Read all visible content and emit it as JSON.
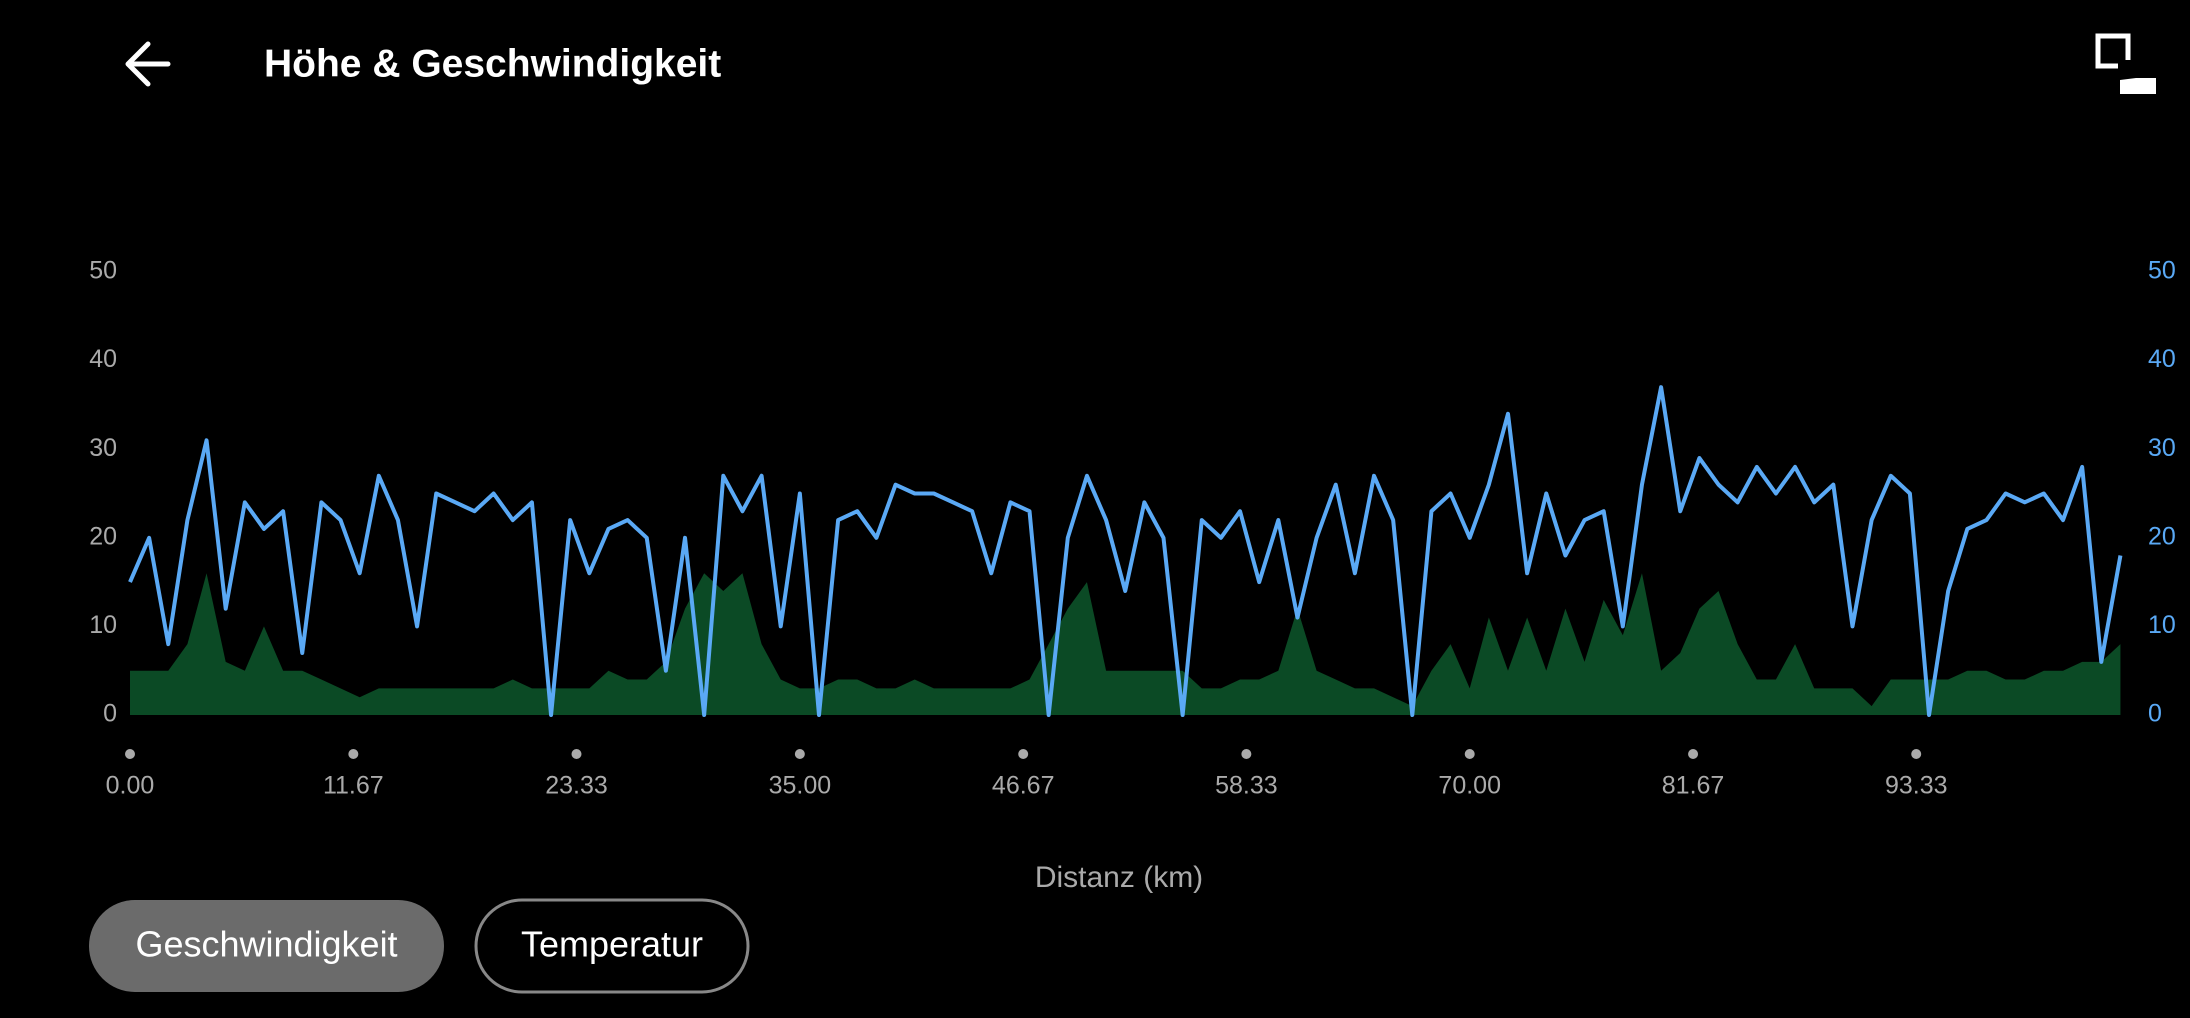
{
  "chart_data": {
    "type": "line",
    "title": "Höhe & Geschwindigkeit",
    "x_label": "Distanz (km)",
    "x": [
      0,
      1,
      2,
      3,
      4,
      5,
      6,
      7,
      8,
      9,
      10,
      11,
      12,
      13,
      14,
      15,
      16,
      17,
      18,
      19,
      20,
      21,
      22,
      23,
      24,
      25,
      26,
      27,
      28,
      29,
      30,
      31,
      32,
      33,
      34,
      35,
      36,
      37,
      38,
      39,
      40,
      41,
      42,
      43,
      44,
      45,
      46,
      47,
      48,
      49,
      50,
      51,
      52,
      53,
      54,
      55,
      56,
      57,
      58,
      59,
      60,
      61,
      62,
      63,
      64,
      65,
      66,
      67,
      68,
      69,
      70,
      71,
      72,
      73,
      74,
      75,
      76,
      77,
      78,
      79,
      80,
      81,
      82,
      83,
      84,
      85,
      86,
      87,
      88,
      89,
      90,
      91,
      92,
      93,
      94,
      95,
      96,
      97,
      98,
      99,
      100,
      101,
      102,
      103,
      104
    ],
    "series": [
      {
        "kind": "area",
        "color": "#0b4a25",
        "values": [
          5,
          5,
          5,
          8,
          16,
          6,
          5,
          10,
          5,
          5,
          4,
          3,
          2,
          3,
          3,
          3,
          3,
          3,
          3,
          3,
          4,
          3,
          3,
          3,
          3,
          5,
          4,
          4,
          6,
          12,
          16,
          14,
          16,
          8,
          4,
          3,
          3,
          4,
          4,
          3,
          3,
          4,
          3,
          3,
          3,
          3,
          3,
          4,
          8,
          12,
          15,
          5,
          5,
          5,
          5,
          5,
          3,
          3,
          4,
          4,
          5,
          12,
          5,
          4,
          3,
          3,
          2,
          1,
          5,
          8,
          3,
          11,
          5,
          11,
          5,
          12,
          6,
          13,
          9,
          16,
          5,
          7,
          12,
          14,
          8,
          4,
          4,
          8,
          3,
          3,
          3,
          1,
          4,
          4,
          4,
          4,
          5,
          5,
          4,
          4,
          5,
          5,
          6,
          6,
          8
        ]
      },
      {
        "kind": "line",
        "color": "#5aa9f5",
        "axis": "y2",
        "values": [
          15,
          20,
          8,
          22,
          31,
          12,
          24,
          21,
          23,
          7,
          24,
          22,
          16,
          27,
          22,
          10,
          25,
          24,
          23,
          25,
          22,
          24,
          0,
          22,
          16,
          21,
          22,
          20,
          5,
          20,
          0,
          27,
          23,
          27,
          10,
          25,
          0,
          22,
          23,
          20,
          26,
          25,
          25,
          24,
          23,
          16,
          24,
          23,
          0,
          20,
          27,
          22,
          14,
          24,
          20,
          0,
          22,
          20,
          23,
          15,
          22,
          11,
          20,
          26,
          16,
          27,
          22,
          0,
          23,
          25,
          20,
          26,
          34,
          16,
          25,
          18,
          22,
          23,
          10,
          26,
          37,
          23,
          29,
          26,
          24,
          28,
          25,
          28,
          24,
          26,
          10,
          22,
          27,
          25,
          0,
          14,
          21,
          22,
          25,
          24,
          25,
          22,
          28,
          6,
          18
        ]
      }
    ],
    "xlim": [
      0,
      104.5
    ],
    "xticks": [
      {
        "value": 0,
        "label": "0.00"
      },
      11.67,
      23.33,
      {
        "value": 35,
        "label": "35.00"
      },
      46.67,
      58.33,
      {
        "value": 70,
        "label": "70.00"
      },
      81.67,
      93.33
    ],
    "ylim": [
      0,
      50
    ],
    "yticks": [
      0,
      10,
      20,
      30,
      40,
      50
    ],
    "y2lim": [
      0,
      50
    ],
    "y2ticks": [
      0,
      10,
      20,
      30,
      40,
      50
    ],
    "buttons": [
      "Geschwindigkeit",
      "Temperatur"
    ]
  }
}
